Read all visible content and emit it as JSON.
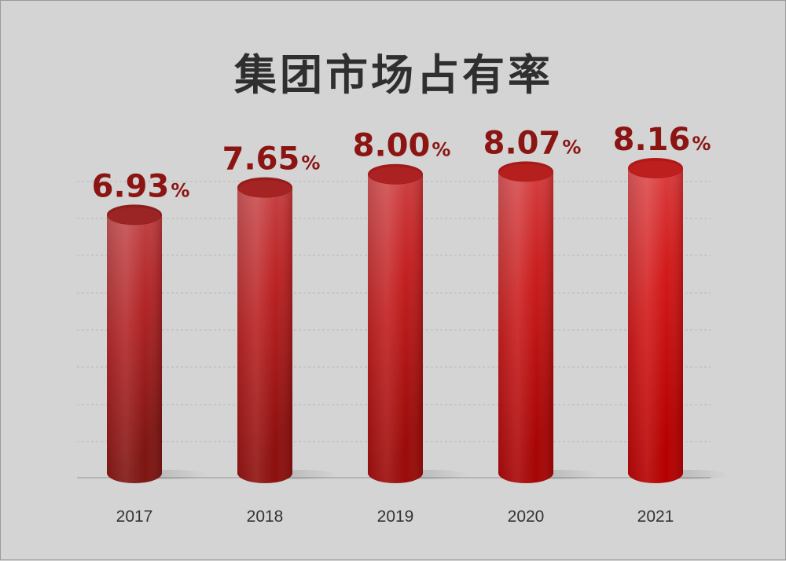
{
  "chart_data": {
    "type": "bar",
    "title": "集团市场占有率",
    "categories": [
      "2017",
      "2018",
      "2019",
      "2020",
      "2021"
    ],
    "values": [
      6.93,
      7.65,
      8.0,
      8.07,
      8.16
    ],
    "value_labels": [
      "6.93",
      "7.65",
      "8.00",
      "8.07",
      "8.16"
    ],
    "unit": "%",
    "xlabel": "",
    "ylabel": "",
    "ylim": [
      0,
      8.16
    ],
    "grid": true,
    "legend": "none",
    "colors": {
      "bar_dark": "#7e1512",
      "bar_light": "#d2292a",
      "bar_bright": "#b50000",
      "label": "#8b1513"
    }
  }
}
